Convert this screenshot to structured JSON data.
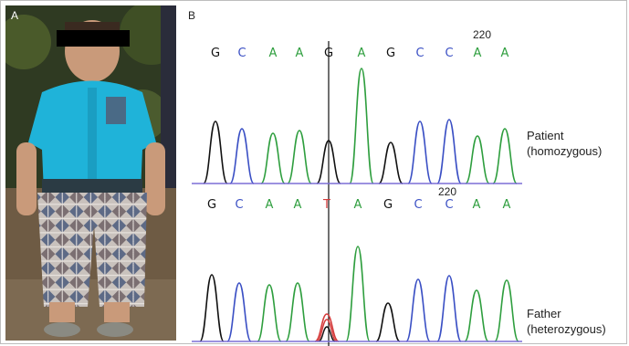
{
  "panels": {
    "a_label": "A",
    "b_label": "B"
  },
  "top_trace": {
    "position_label": "220",
    "bases": [
      "G",
      "C",
      "A",
      "A",
      "G",
      "A",
      "G",
      "C",
      "C",
      "A",
      "A"
    ],
    "label_line1": "Patient",
    "label_line2": "(homozygous)"
  },
  "bottom_trace": {
    "position_label": "220",
    "bases": [
      "G",
      "C",
      "A",
      "A",
      "T",
      "A",
      "G",
      "C",
      "C",
      "A",
      "A"
    ],
    "label_line1": "Father",
    "label_line2": "(heterozygous)"
  },
  "colors": {
    "G": "#111111",
    "C": "#3a4fc4",
    "A": "#2e9e3e",
    "T": "#d43b3b",
    "baseline": "#7b6fd6"
  }
}
